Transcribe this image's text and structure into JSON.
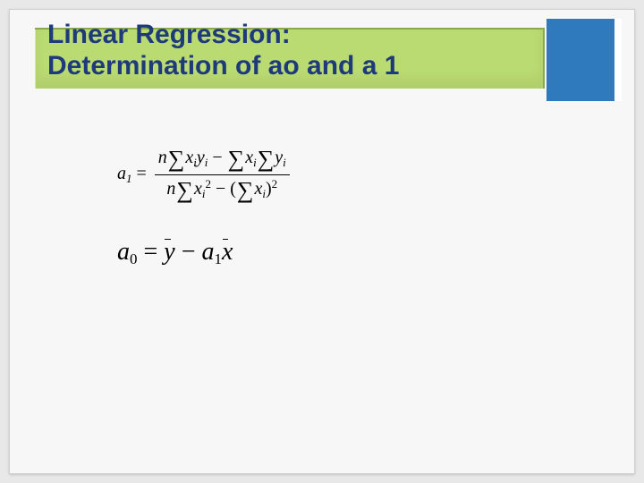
{
  "slide": {
    "title_line1": "Linear Regression:",
    "title_line2": "Determination of ao and a 1",
    "colors": {
      "title_text": "#1e3a7b",
      "title_bar_bg": "#bada72",
      "title_bar_border": "#8aa84c",
      "corner_box": "#2f79bd",
      "slide_bg": "#f7f7f7",
      "page_bg": "#e8e8e8"
    },
    "formula1": {
      "lhs_var": "a",
      "lhs_sub": "1",
      "eq": " = ",
      "num_n": "n",
      "num_sum_xy": "x",
      "num_xy_sub": "i",
      "num_y": "y",
      "num_y_sub": "i",
      "minus": " − ",
      "num_sum_x": "x",
      "num_x_sub": "i",
      "num_sum_y2": "y",
      "num_y2_sub": "i",
      "den_n": "n",
      "den_sum_x2": "x",
      "den_x2_sub": "i",
      "den_x2_sup": "2",
      "den_minus": " − (",
      "den_sum_x": "x",
      "den_x_sub": "i",
      "den_close": ")",
      "den_close_sup": "2"
    },
    "formula2": {
      "lhs_var": "a",
      "lhs_sub": "0",
      "eq": " = ",
      "ybar": "y",
      "minus": " − ",
      "a_var": "a",
      "a_sub": "1",
      "xbar": "x"
    }
  }
}
